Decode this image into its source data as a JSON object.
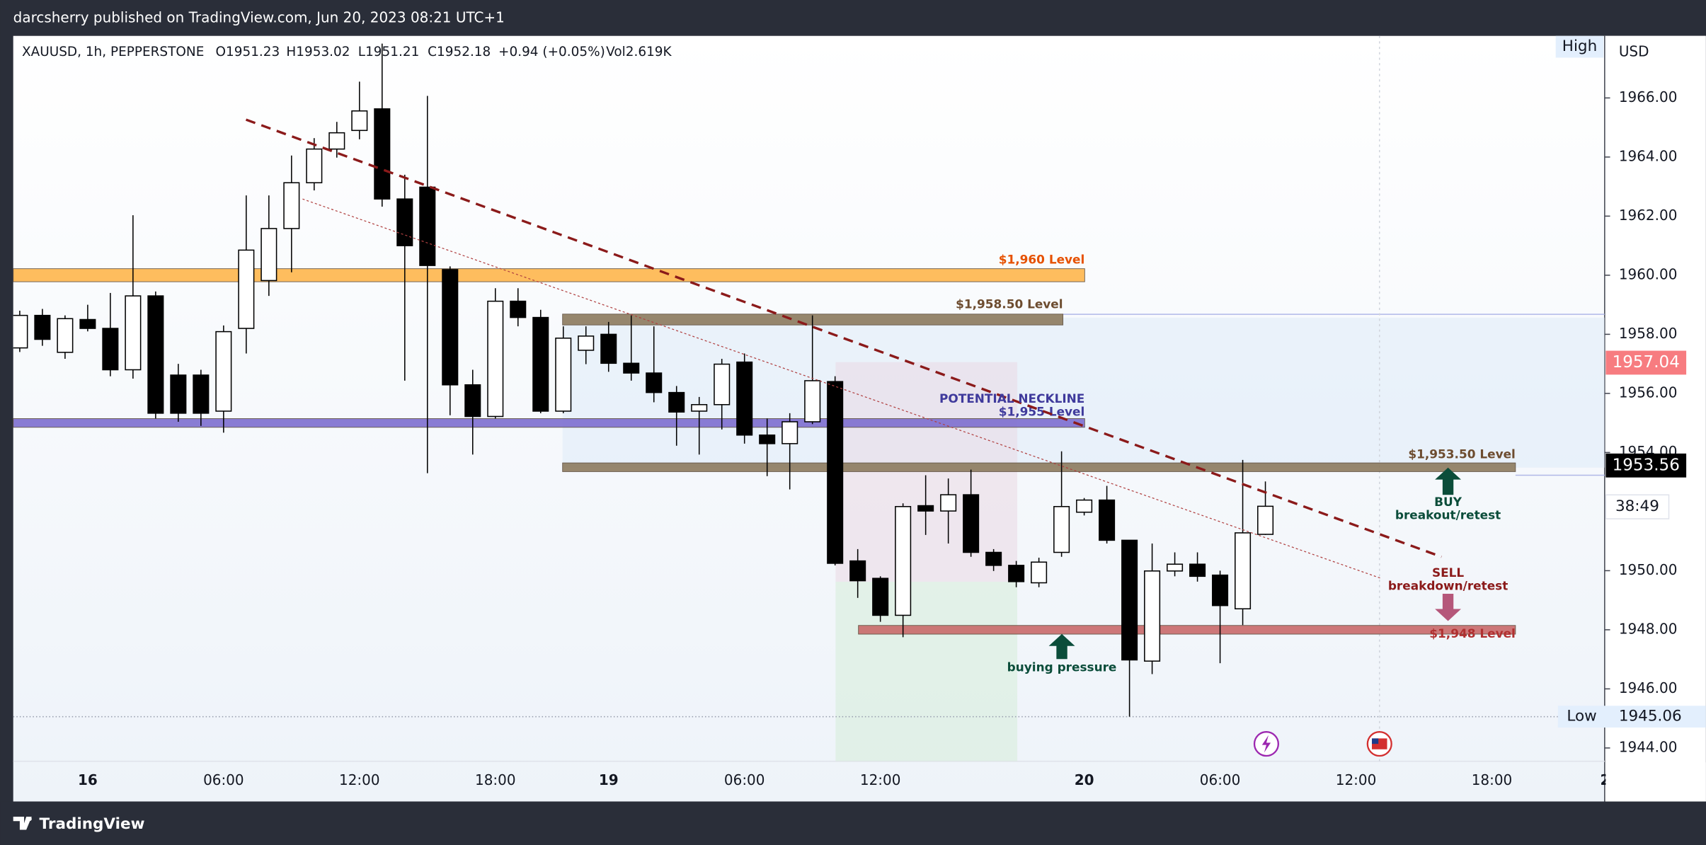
{
  "header": {
    "publisher": "darcsherry published on TradingView.com, Jun 20, 2023 08:21 UTC+1"
  },
  "footer": {
    "brand": "TradingView"
  },
  "chart_data": {
    "type": "candlestick",
    "legend": {
      "symbol": "XAUUSD, 1h, PEPPERSTONE",
      "open": "O1951.23",
      "high": "H1953.02",
      "low": "L1951.21",
      "close": "C1952.18",
      "change": "+0.94 (+0.05%)",
      "volume": "Vol2.619K"
    },
    "currency": "USD",
    "categories": [
      null,
      null,
      null,
      "16",
      null,
      null,
      null,
      null,
      null,
      "06:00",
      null,
      null,
      null,
      null,
      null,
      "12:00",
      null,
      null,
      null,
      null,
      null,
      "18:00",
      null,
      null,
      null,
      null,
      "19",
      null,
      null,
      null,
      null,
      null,
      "06:00",
      null,
      null,
      null,
      null,
      null,
      "12:00",
      null,
      null,
      null,
      null,
      null,
      null,
      null,
      null,
      "20",
      null,
      null,
      null,
      null,
      null,
      "06:00",
      null,
      null,
      null,
      null,
      null,
      "12:00",
      null,
      null,
      null,
      null,
      null,
      "18:00",
      null,
      null,
      null,
      null,
      "2"
    ],
    "open": [
      1957.54,
      1958.64,
      1957.39,
      1958.5,
      1958.2,
      1956.8,
      1959.3,
      1956.62,
      1956.62,
      1955.4,
      1958.2,
      1959.82,
      1961.58,
      1963.13,
      1964.27,
      1964.9,
      1965.63,
      1962.58,
      1962.98,
      1960.19,
      1956.29,
      1955.22,
      1959.12,
      1958.57,
      1955.4,
      1957.46,
      1958.0,
      1957.02,
      1956.69,
      1956.03,
      1955.4,
      1955.62,
      1957.06,
      1954.59,
      1954.3,
      1955.04,
      1956.4,
      1950.33,
      1949.74,
      1948.49,
      1952.2,
      1952.02,
      1952.57,
      1950.62,
      1950.18,
      1949.59,
      1950.62,
      1951.98,
      1952.39,
      1951.03,
      1946.94,
      1949.99,
      1950.22,
      1949.85,
      1948.71,
      1951.23,
      null,
      null,
      null,
      null,
      null,
      null,
      null,
      null,
      null,
      null,
      null,
      null,
      null,
      null,
      null
    ],
    "high": [
      1958.8,
      1958.86,
      1958.64,
      1959.0,
      1959.4,
      1962.03,
      1959.45,
      1957.0,
      1956.8,
      1958.3,
      1962.7,
      1962.7,
      1964.05,
      1964.64,
      1965.19,
      1966.55,
      1967.84,
      1963.4,
      1966.07,
      1960.3,
      1956.8,
      1959.56,
      1959.56,
      1958.83,
      1958.27,
      1958.27,
      1958.42,
      1958.64,
      1958.27,
      1956.25,
      1955.88,
      1957.17,
      1957.35,
      1955.15,
      1955.33,
      1958.64,
      1956.58,
      1950.73,
      1949.81,
      1952.28,
      1953.23,
      1953.12,
      1953.42,
      1950.73,
      1950.33,
      1950.44,
      1954.04,
      1952.46,
      1952.87,
      1951.03,
      1950.92,
      1950.62,
      1950.62,
      1950.0,
      1953.75,
      1953.02,
      null,
      null,
      null,
      null,
      null,
      null,
      null,
      null,
      null,
      null,
      null,
      null,
      null,
      null,
      null
    ],
    "low": [
      1957.4,
      1957.61,
      1957.17,
      1958.1,
      1956.58,
      1956.5,
      1955.15,
      1955.04,
      1954.9,
      1954.67,
      1957.35,
      1959.3,
      1960.1,
      1962.87,
      1963.98,
      1964.6,
      1962.32,
      1956.43,
      1953.3,
      1955.26,
      1953.93,
      1955.15,
      1958.27,
      1955.33,
      1955.33,
      1956.99,
      1956.73,
      1956.43,
      1955.7,
      1954.23,
      1953.93,
      1954.78,
      1954.3,
      1953.2,
      1952.75,
      1954.96,
      1950.18,
      1949.08,
      1948.27,
      1947.75,
      1951.21,
      1950.92,
      1950.47,
      1949.99,
      1949.44,
      1949.44,
      1950.47,
      1951.87,
      1950.92,
      1945.06,
      1946.5,
      1949.81,
      1949.63,
      1946.87,
      1948.16,
      1951.21,
      null,
      null,
      null,
      null,
      null,
      null,
      null,
      null,
      null,
      null,
      null,
      null,
      null,
      null,
      null
    ],
    "close": [
      1958.64,
      1957.83,
      1958.53,
      1958.2,
      1956.8,
      1959.3,
      1955.33,
      1955.33,
      1955.33,
      1958.09,
      1960.85,
      1961.58,
      1963.13,
      1964.27,
      1964.82,
      1965.56,
      1962.58,
      1961.0,
      1960.33,
      1956.29,
      1955.22,
      1959.12,
      1958.57,
      1955.4,
      1957.87,
      1957.94,
      1957.02,
      1956.69,
      1956.03,
      1955.37,
      1955.62,
      1956.99,
      1954.59,
      1954.3,
      1955.04,
      1956.43,
      1950.25,
      1949.66,
      1948.49,
      1952.17,
      1952.02,
      1952.57,
      1950.62,
      1950.18,
      1949.63,
      1950.29,
      1952.17,
      1952.39,
      1951.03,
      1946.98,
      1949.99,
      1950.22,
      1949.81,
      1948.82,
      1951.28,
      1952.18,
      null,
      null,
      null,
      null,
      null,
      null,
      null,
      null,
      null,
      null,
      null,
      null,
      null,
      null,
      null
    ],
    "up_color": "#ffffff",
    "down_color": "#000000",
    "ylim": [
      1943.55,
      1968.1
    ],
    "yticks": [
      {
        "value": 1944,
        "label": "1944.00"
      },
      {
        "value": 1946,
        "label": "1946.00"
      },
      {
        "value": 1948,
        "label": "1948.00"
      },
      {
        "value": 1950,
        "label": "1950.00"
      },
      {
        "value": 1954,
        "label": "1954.00"
      },
      {
        "value": 1956,
        "label": "1956.00"
      },
      {
        "value": 1958,
        "label": "1958.00"
      },
      {
        "value": 1960,
        "label": "1960.00"
      },
      {
        "value": 1962,
        "label": "1962.00"
      },
      {
        "value": 1964,
        "label": "1964.00"
      },
      {
        "value": 1966,
        "label": "1966.00"
      }
    ],
    "levels": [
      {
        "label": "$1,960 Level",
        "value": 1960,
        "color": "#ffb74d",
        "text_color": "#e65100"
      },
      {
        "label": "$1,958.50 Level",
        "value": 1958.5,
        "color": "#8d7b5e",
        "text_color": "#6d4c2f"
      },
      {
        "label": "$1,955 Level",
        "value": 1955,
        "color": "#7e6fd0",
        "text_color": "#3f3a9c"
      },
      {
        "label": "$1,953.50 Level",
        "value": 1953.5,
        "color": "#8d7b5e",
        "text_color": "#6d4c2f"
      },
      {
        "label": "$1,948 Level",
        "value": 1948,
        "color": "#c96a6a",
        "text_color": "#b03030"
      }
    ],
    "annotations": [
      "POTENTIAL NECKLINE",
      "BUY",
      "breakout/retest",
      "SELL",
      "breakdown/retest",
      "buying pressure"
    ],
    "price_markers": [
      {
        "value": 1957.04,
        "color": "#f77c80"
      },
      {
        "value": 1953.56,
        "color": "#000000"
      }
    ],
    "countdown": "38:49",
    "high_label": "High",
    "low_label": "Low",
    "low_value": 1945.06
  }
}
